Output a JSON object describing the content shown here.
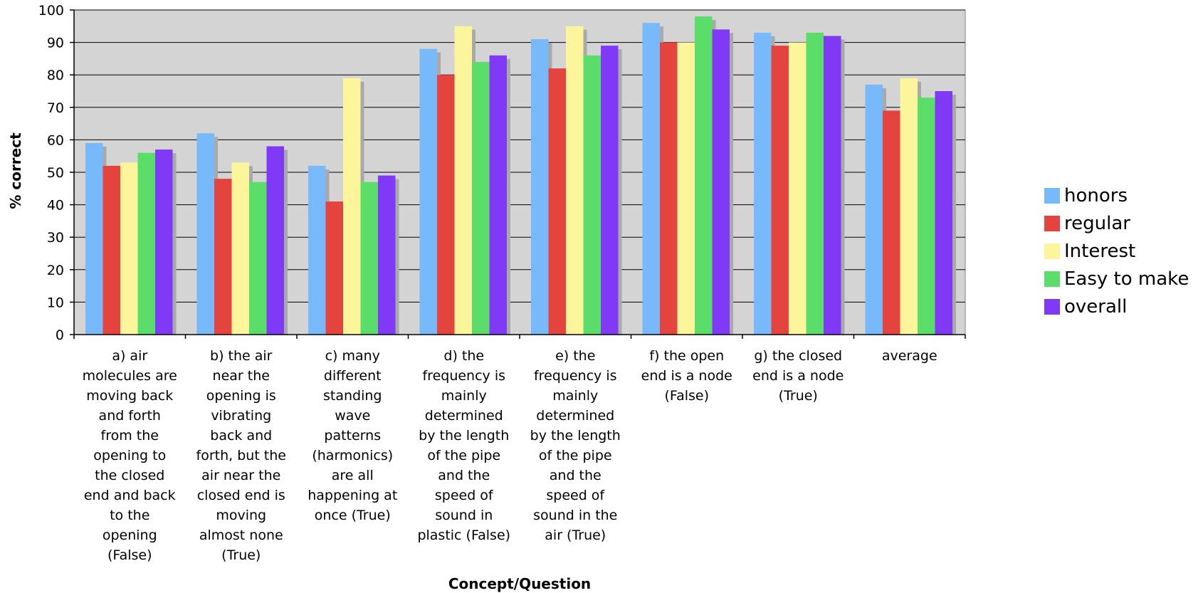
{
  "chart_data": {
    "type": "bar",
    "xlabel": "Concept/Question",
    "ylabel": "% correct",
    "ylim": [
      0,
      100
    ],
    "yticks": [
      "0",
      "10",
      "20",
      "30",
      "40",
      "50",
      "60",
      "70",
      "80",
      "90",
      "100"
    ],
    "grid": true,
    "legend_position": "right",
    "categories": [
      "a) air molecules are moving back and forth from the opening to the closed end and back to the opening (False)",
      "b) the air near the opening is vibrating back and forth, but the air near the closed end is moving almost none (True)",
      "c) many different standing wave patterns (harmonics) are all happening at once (True)",
      "d) the frequency is mainly determined by the length of the pipe and the speed of sound in plastic (False)",
      "e) the frequency is mainly determined by the length of the pipe and the speed of sound in the air (True)",
      "f) the open end is a node (False)",
      "g) the closed end is a node (True)",
      "average"
    ],
    "category_lines": [
      [
        "a) air",
        "molecules are",
        "moving back",
        "and forth",
        "from the",
        "opening to",
        "the closed",
        "end and back",
        "to the",
        "opening",
        "(False)"
      ],
      [
        "b) the air",
        "near the",
        "opening is",
        "vibrating",
        "back and",
        "forth, but the",
        "air near the",
        "closed end is",
        "moving",
        "almost none",
        "(True)"
      ],
      [
        "c) many",
        "different",
        "standing",
        "wave",
        "patterns",
        "(harmonics)",
        "are all",
        "happening at",
        "once (True)"
      ],
      [
        "d) the",
        "frequency is",
        "mainly",
        "determined",
        "by the length",
        "of the pipe",
        "and the",
        "speed of",
        "sound in",
        "plastic (False)"
      ],
      [
        "e) the",
        "frequency is",
        "mainly",
        "determined",
        "by the length",
        "of the pipe",
        "and the",
        "speed of",
        "sound in the",
        "air (True)"
      ],
      [
        "f) the open",
        "end is a node",
        "(False)"
      ],
      [
        "g) the closed",
        "end is a node",
        "(True)"
      ],
      [
        "average"
      ]
    ],
    "series": [
      {
        "name": "honors",
        "color": "#77b9fb",
        "values": [
          59,
          62,
          52,
          88,
          91,
          96,
          93,
          77
        ]
      },
      {
        "name": "regular",
        "color": "#e5433d",
        "values": [
          52,
          48,
          41,
          80,
          82,
          90,
          89,
          69
        ]
      },
      {
        "name": "Interest",
        "color": "#fdf59c",
        "values": [
          53,
          53,
          79,
          95,
          95,
          90,
          90,
          79
        ]
      },
      {
        "name": "Easy to make",
        "color": "#5bde69",
        "values": [
          56,
          47,
          47,
          84,
          86,
          98,
          93,
          73
        ]
      },
      {
        "name": "overall",
        "color": "#7f39f7",
        "values": [
          57,
          58,
          49,
          86,
          89,
          94,
          92,
          75
        ]
      }
    ],
    "plot_background": "#d4d4d4",
    "shadow_color": "#a9a9a9"
  }
}
